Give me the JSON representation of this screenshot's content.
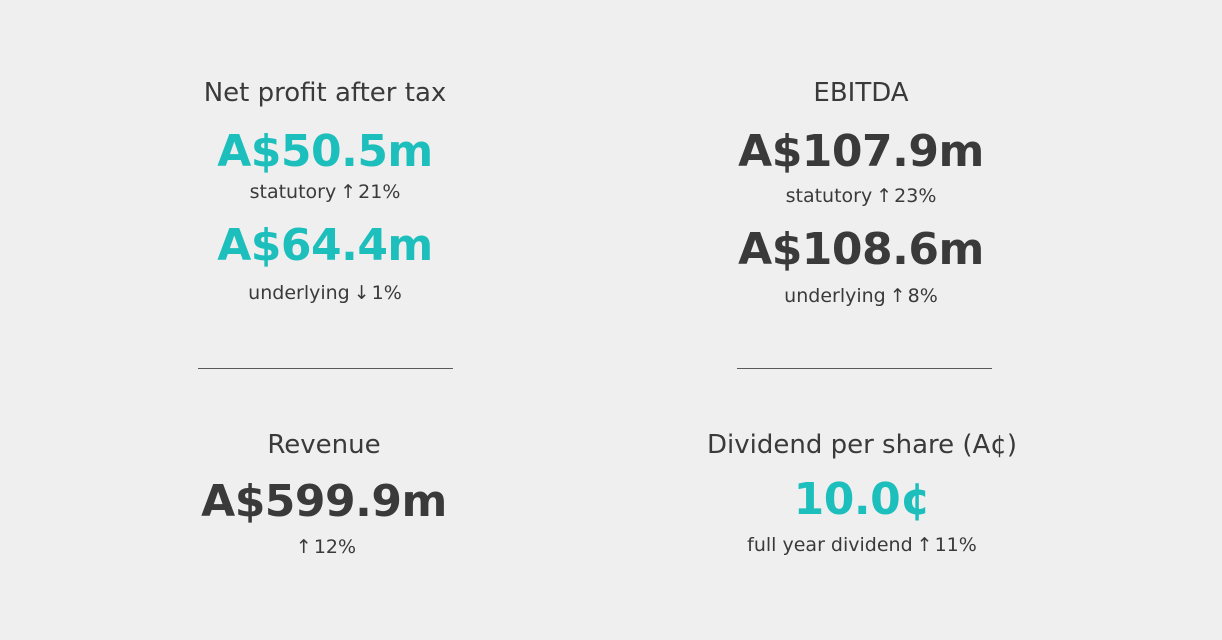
{
  "cards": {
    "npat": {
      "title": "Net profit after tax",
      "statutory_value": "A$50.5m",
      "statutory_label": "statutory",
      "statutory_arrow": "↑",
      "statutory_change": "21%",
      "underlying_value": "A$64.4m",
      "underlying_label": "underlying",
      "underlying_arrow": "↓",
      "underlying_change": "1%"
    },
    "ebitda": {
      "title": "EBITDA",
      "statutory_value": "A$107.9m",
      "statutory_label": "statutory",
      "statutory_arrow": "↑",
      "statutory_change": "23%",
      "underlying_value": "A$108.6m",
      "underlying_label": "underlying",
      "underlying_arrow": "↑",
      "underlying_change": "8%"
    },
    "revenue": {
      "title": "Revenue",
      "value": "A$599.9m",
      "arrow": "↑",
      "change": "12%"
    },
    "dividend": {
      "title": "Dividend per share (A¢)",
      "value": "10.0¢",
      "label": "full year dividend",
      "arrow": "↑",
      "change": "11%"
    }
  },
  "colors": {
    "accent": "#1dbfbc",
    "text": "#3a3a3a",
    "background": "#efefef"
  },
  "icons": [
    "arrow-up-icon",
    "arrow-down-icon"
  ]
}
